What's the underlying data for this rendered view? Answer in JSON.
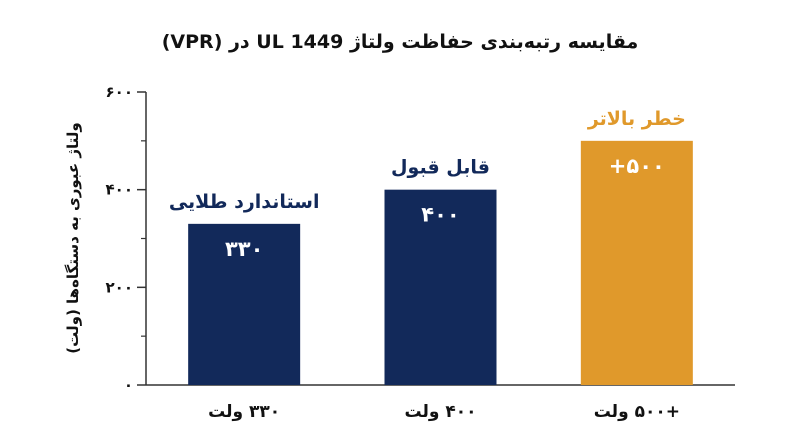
{
  "chart_data": {
    "type": "bar",
    "title": "مقایسه رتبه‌بندی حفاظت ولتاژ UL 1449 در (VPR)",
    "xlabel": "",
    "ylabel": "ولتاژ عبوری به دستگاه‌ها (ولت)",
    "ylim": [
      0,
      600
    ],
    "yticks": [
      0,
      200,
      400,
      600
    ],
    "ytick_labels": [
      "۰",
      "۲۰۰",
      "۴۰۰",
      "۶۰۰"
    ],
    "categories": [
      "۳۳۰ ولت",
      "۴۰۰ ولت",
      "+۵۰۰ ولت"
    ],
    "values": [
      330,
      400,
      500
    ],
    "value_labels": [
      "۳۳۰",
      "۴۰۰",
      "+۵۰۰"
    ],
    "bar_labels": [
      "استاندارد طلایی",
      "قابل قبول",
      "خطر بالاتر"
    ],
    "colors": [
      "#12295a",
      "#12295a",
      "#e0992b"
    ],
    "label_colors": [
      "#12295a",
      "#12295a",
      "#e0992b"
    ],
    "axis_color": "#333333",
    "grid": false,
    "legend": "none"
  }
}
